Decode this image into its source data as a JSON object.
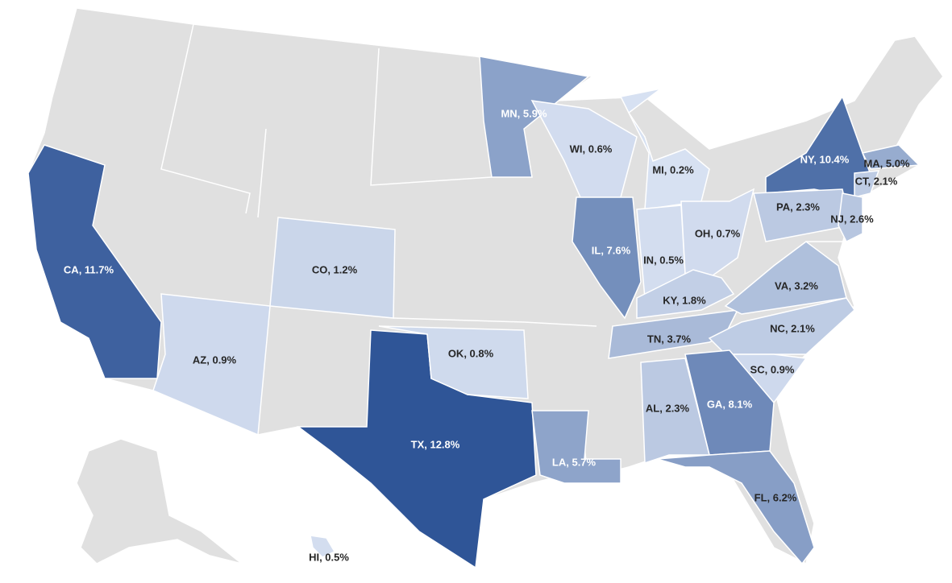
{
  "chart_data": {
    "type": "choropleth",
    "color_scale": [
      "#dae3f3",
      "#2f5597"
    ],
    "regions": [
      {
        "label": "CA, 11.7%",
        "value": 11.7
      },
      {
        "label": "AZ, 0.9%",
        "value": 0.9
      },
      {
        "label": "CO, 1.2%",
        "value": 1.2
      },
      {
        "label": "TX, 12.8%",
        "value": 12.8
      },
      {
        "label": "OK, 0.8%",
        "value": 0.8
      },
      {
        "label": "MN, 5.9%",
        "value": 5.9
      },
      {
        "label": "WI, 0.6%",
        "value": 0.6
      },
      {
        "label": "MI, 0.2%",
        "value": 0.2
      },
      {
        "label": "IL, 7.6%",
        "value": 7.6
      },
      {
        "label": "IN, 0.5%",
        "value": 0.5
      },
      {
        "label": "OH, 0.7%",
        "value": 0.7
      },
      {
        "label": "KY, 1.8%",
        "value": 1.8
      },
      {
        "label": "TN, 3.7%",
        "value": 3.7
      },
      {
        "label": "NY, 10.4%",
        "value": 10.4
      },
      {
        "label": "MA, 5.0%",
        "value": 5.0
      },
      {
        "label": "CT, 2.1%",
        "value": 2.1
      },
      {
        "label": "PA, 2.3%",
        "value": 2.3
      },
      {
        "label": "NJ, 2.6%",
        "value": 2.6
      },
      {
        "label": "VA, 3.2%",
        "value": 3.2
      },
      {
        "label": "NC, 2.1%",
        "value": 2.1
      },
      {
        "label": "SC, 0.9%",
        "value": 0.9
      },
      {
        "label": "GA, 8.1%",
        "value": 8.1
      },
      {
        "label": "AL, 2.3%",
        "value": 2.3
      },
      {
        "label": "LA, 5.7%",
        "value": 5.7
      },
      {
        "label": "FL, 6.2%",
        "value": 6.2
      },
      {
        "label": "HI, 0.5%",
        "value": 0.5
      }
    ]
  }
}
